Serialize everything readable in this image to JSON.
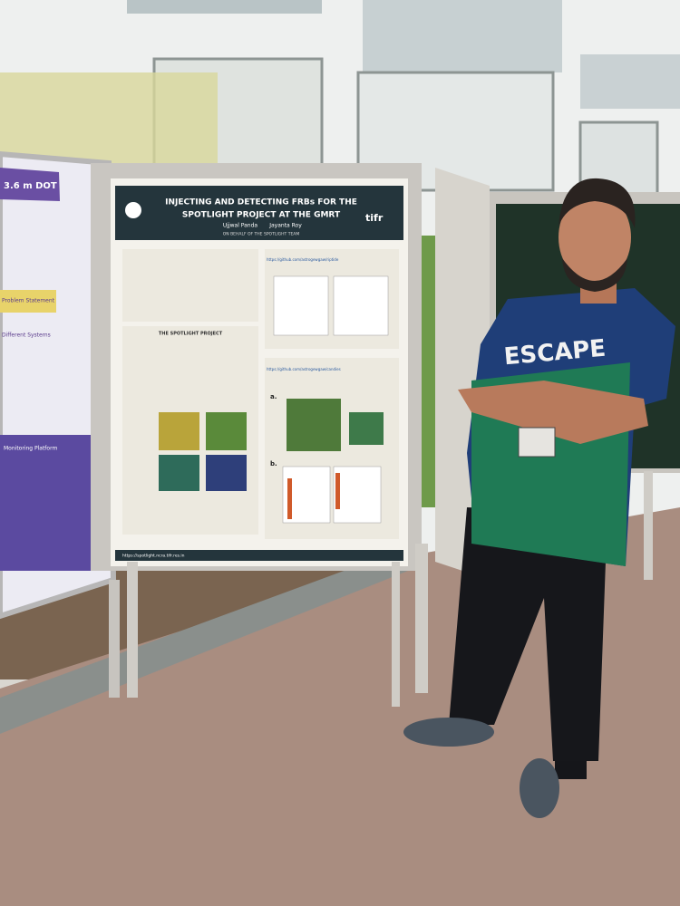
{
  "left_poster": {
    "header": "3.6 m DOT",
    "sections": [
      "Problem Statement",
      "Different Systems",
      "Monitoring Platform"
    ]
  },
  "main_poster": {
    "title_line1": "INJECTING AND DETECTING FRBs FOR THE",
    "title_line2": "SPOTLIGHT PROJECT AT THE GMRT",
    "authors": [
      "Ujjwal Panda",
      "Jayanta Roy"
    ],
    "affiliation": "ON BEHALF OF THE SPOTLIGHT TEAM",
    "logo": "tifr",
    "middle_heading": "THE SPOTLIGHT PROJECT",
    "links": [
      "https://github.com/astrogewgaw/riptide",
      "https://github.com/astrogewgaw/candies"
    ],
    "panel_labels": [
      "a.",
      "b."
    ],
    "footer_url": "https://spotlight.ncra.tifr.res.in"
  },
  "shirt": {
    "text": "ESCAPE"
  }
}
